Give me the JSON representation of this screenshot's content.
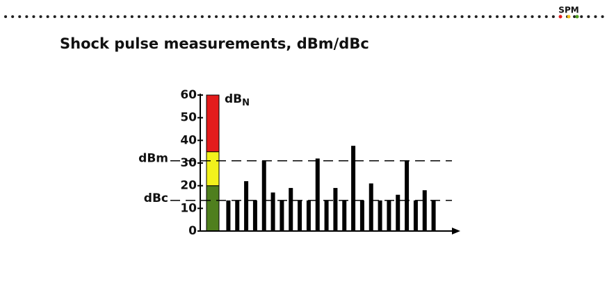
{
  "logo": "SPM",
  "chart_data": {
    "type": "bar",
    "title": "Shock pulse measurements, dBm/dBc",
    "unit_label": "dB",
    "unit_subscript": "N",
    "values": [
      13.5,
      13.5,
      22,
      13.5,
      31,
      17,
      13.5,
      19,
      13.5,
      13.5,
      32,
      13.5,
      19,
      13.5,
      37.6,
      13.5,
      21,
      13.5,
      13.5,
      16,
      31,
      13.5,
      18,
      13.5
    ],
    "color": "#000000",
    "ylim": [
      0,
      60
    ],
    "yticks": [
      0,
      10,
      20,
      30,
      40,
      50,
      60
    ],
    "color_scale": {
      "colors": [
        "#4f7f1e",
        "#f2f21c",
        "#e41c1c"
      ],
      "values": [
        20,
        15,
        25
      ]
    },
    "reference_lines": [
      {
        "label": "dBm",
        "value": 31
      },
      {
        "label": "dBc",
        "value": 13.5
      }
    ]
  }
}
